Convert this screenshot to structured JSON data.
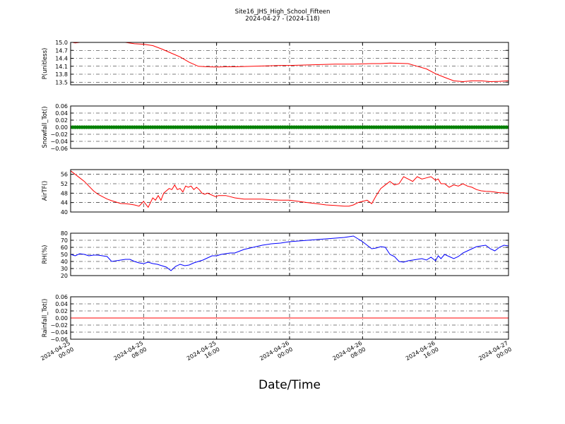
{
  "figure": {
    "title_line1": "Site16_JHS_High_School_Fifteen",
    "title_line2": "2024-04-27 - (2024-118)",
    "xlabel": "Date/Time"
  },
  "chart_data": [
    {
      "type": "line",
      "ylabel": "P(unitless)",
      "color": "#ff0000",
      "ylim": [
        13.4,
        15.0
      ],
      "yticks": [
        13.5,
        13.8,
        14.1,
        14.4,
        14.7,
        15.0
      ],
      "ytick_labels": [
        "13.5",
        "13.8",
        "14.1",
        "14.4",
        "14.7",
        "15.0"
      ],
      "series": [
        {
          "x": [
            0.2,
            0.5,
            1,
            6,
            7,
            8,
            9,
            10,
            11,
            12,
            13,
            14,
            15,
            16,
            17,
            18,
            19,
            20,
            21,
            22,
            23,
            24,
            25,
            26,
            27,
            28,
            29,
            30,
            31,
            32,
            33,
            34,
            35,
            36,
            37,
            38,
            39,
            40,
            41,
            42,
            43,
            44,
            45,
            46,
            47,
            48
          ],
          "y": [
            15.0,
            14.98,
            15.0,
            15.0,
            14.95,
            14.93,
            14.88,
            14.75,
            14.6,
            14.45,
            14.25,
            14.1,
            14.08,
            14.07,
            14.08,
            14.08,
            14.09,
            14.1,
            14.11,
            14.12,
            14.13,
            14.13,
            14.14,
            14.15,
            14.16,
            14.17,
            14.18,
            14.18,
            14.18,
            14.19,
            14.2,
            14.2,
            14.22,
            14.21,
            14.2,
            14.1,
            14.0,
            13.82,
            13.68,
            13.55,
            13.52,
            13.55,
            13.55,
            13.52,
            13.53,
            13.55
          ]
        }
      ]
    },
    {
      "type": "scatter",
      "ylabel": "Snowfall_Tot()",
      "color": "#008000",
      "ylim": [
        -0.06,
        0.06
      ],
      "yticks": [
        -0.06,
        -0.04,
        -0.02,
        0.0,
        0.02,
        0.04,
        0.06
      ],
      "ytick_labels": [
        "−0.06",
        "−0.04",
        "−0.02",
        "0.00",
        "0.02",
        "0.04",
        "0.06"
      ],
      "series": [
        {
          "x_start": 0,
          "x_end": 48,
          "x_step": 0.25,
          "y": 0.0
        }
      ]
    },
    {
      "type": "line",
      "ylabel": "AirTF()",
      "color": "#ff0000",
      "ylim": [
        40,
        58
      ],
      "yticks": [
        40,
        44,
        48,
        52,
        56
      ],
      "ytick_labels": [
        "40",
        "44",
        "48",
        "52",
        "56"
      ],
      "series": [
        {
          "x": [
            0,
            0.5,
            1,
            1.5,
            2,
            2.5,
            3,
            3.5,
            4,
            4.5,
            5,
            5.5,
            6,
            6.5,
            7,
            7.5,
            8,
            8.5,
            9,
            9.3,
            9.6,
            9.9,
            10.2,
            10.5,
            10.8,
            11.1,
            11.4,
            11.7,
            12,
            12.3,
            12.6,
            12.9,
            13.2,
            13.5,
            13.8,
            14.1,
            14.4,
            14.7,
            15,
            15.3,
            15.6,
            15.9,
            16.2,
            16.5,
            17,
            17.5,
            18,
            19,
            20,
            21,
            22,
            23,
            24,
            25,
            26,
            27,
            28,
            29,
            30,
            30.5,
            31,
            31.5,
            32,
            32.5,
            33,
            33.5,
            34,
            34.5,
            35,
            35.5,
            36,
            36.5,
            37,
            37.5,
            38,
            38.5,
            39,
            39.5,
            40,
            40.3,
            40.6,
            41,
            41.5,
            42,
            42.5,
            43,
            43.5,
            44,
            44.5,
            45,
            45.5,
            46,
            46.5,
            47,
            47.5,
            48
          ],
          "y": [
            57.5,
            56,
            54.5,
            53,
            51,
            49,
            47.5,
            46.5,
            45.5,
            44.8,
            44.2,
            43.6,
            43.5,
            43.3,
            43,
            42.5,
            44.5,
            42,
            46,
            45,
            47,
            45,
            48,
            49,
            50,
            49.5,
            51.5,
            49.5,
            50,
            48.5,
            51,
            50.5,
            51,
            49.5,
            50.5,
            49.5,
            48,
            47.5,
            48,
            47.5,
            47,
            46.5,
            47,
            47,
            47,
            46.5,
            46,
            45.5,
            45.5,
            45.5,
            45.2,
            45,
            45,
            44.5,
            44,
            43.5,
            43,
            42.8,
            42.5,
            42.5,
            43,
            44,
            44.5,
            45,
            43.5,
            47,
            50,
            51.5,
            53,
            51.5,
            52,
            55,
            54,
            53,
            55,
            54,
            54.5,
            55,
            53.5,
            54,
            52,
            52,
            50.5,
            51.5,
            51,
            52,
            51,
            50.5,
            49.5,
            49,
            48.8,
            48.7,
            48.5,
            48.2,
            48.2,
            47.8
          ]
        }
      ]
    },
    {
      "type": "line",
      "ylabel": "RH(%)",
      "color": "#0000ff",
      "ylim": [
        20,
        80
      ],
      "yticks": [
        20,
        30,
        40,
        50,
        60,
        70,
        80
      ],
      "ytick_labels": [
        "20",
        "30",
        "40",
        "50",
        "60",
        "70",
        "80"
      ],
      "series": [
        {
          "x": [
            0,
            0.5,
            1,
            1.5,
            2,
            2.5,
            3,
            3.5,
            4,
            4.5,
            5,
            5.5,
            6,
            6.5,
            7,
            7.5,
            8,
            8.5,
            9,
            9.5,
            10,
            10.5,
            11,
            11.5,
            12,
            12.5,
            13,
            13.5,
            14,
            14.5,
            15,
            15.5,
            16,
            16.5,
            17,
            17.5,
            18,
            19,
            20,
            21,
            22,
            23,
            24,
            25,
            26,
            27,
            28,
            29,
            30,
            30.5,
            31,
            31.5,
            32,
            32.5,
            33,
            33.5,
            34,
            34.5,
            35,
            35.5,
            36,
            36.5,
            37,
            37.5,
            38,
            38.5,
            39,
            39.5,
            40,
            40.3,
            40.6,
            41,
            41.5,
            42,
            42.5,
            43,
            43.5,
            44,
            44.5,
            45,
            45.5,
            46,
            46.5,
            47,
            47.5,
            48
          ],
          "y": [
            50,
            48,
            51,
            50,
            48,
            49,
            49,
            48,
            47,
            40,
            41,
            42,
            43,
            43,
            40,
            38,
            37,
            39,
            37,
            36,
            34,
            32,
            27,
            33,
            36,
            34,
            35,
            38,
            40,
            42,
            45,
            48,
            48,
            50,
            51,
            52,
            52,
            57,
            60,
            63,
            65,
            66,
            68,
            69,
            70,
            71,
            72,
            73,
            74,
            75,
            76,
            72,
            68,
            63,
            58,
            59,
            61,
            60,
            50,
            47,
            40,
            39,
            41,
            42,
            43,
            44,
            42,
            46,
            41,
            48,
            44,
            50,
            47,
            44,
            47,
            52,
            55,
            58,
            61,
            62,
            63,
            58,
            55,
            60,
            63,
            62
          ]
        }
      ]
    },
    {
      "type": "line",
      "ylabel": "Rainfall_Tot()",
      "color": "#ff0000",
      "ylim": [
        -0.06,
        0.06
      ],
      "yticks": [
        -0.06,
        -0.04,
        -0.02,
        0.0,
        0.02,
        0.04,
        0.06
      ],
      "ytick_labels": [
        "−0.06",
        "−0.04",
        "−0.02",
        "0.00",
        "0.02",
        "0.04",
        "0.06"
      ],
      "series": [
        {
          "x": [
            0,
            48
          ],
          "y": [
            0.0,
            0.0
          ]
        }
      ]
    }
  ],
  "x_axis": {
    "range_hours": [
      0,
      48
    ],
    "ticks_hours": [
      0,
      8,
      16,
      24,
      32,
      40,
      48
    ],
    "tick_labels": [
      [
        "2024-04-25",
        "00:00"
      ],
      [
        "2024-04-25",
        "08:00"
      ],
      [
        "2024-04-25",
        "16:00"
      ],
      [
        "2024-04-26",
        "00:00"
      ],
      [
        "2024-04-26",
        "08:00"
      ],
      [
        "2024-04-26",
        "16:00"
      ],
      [
        "2024-04-27",
        "00:00"
      ]
    ],
    "grid": true
  }
}
